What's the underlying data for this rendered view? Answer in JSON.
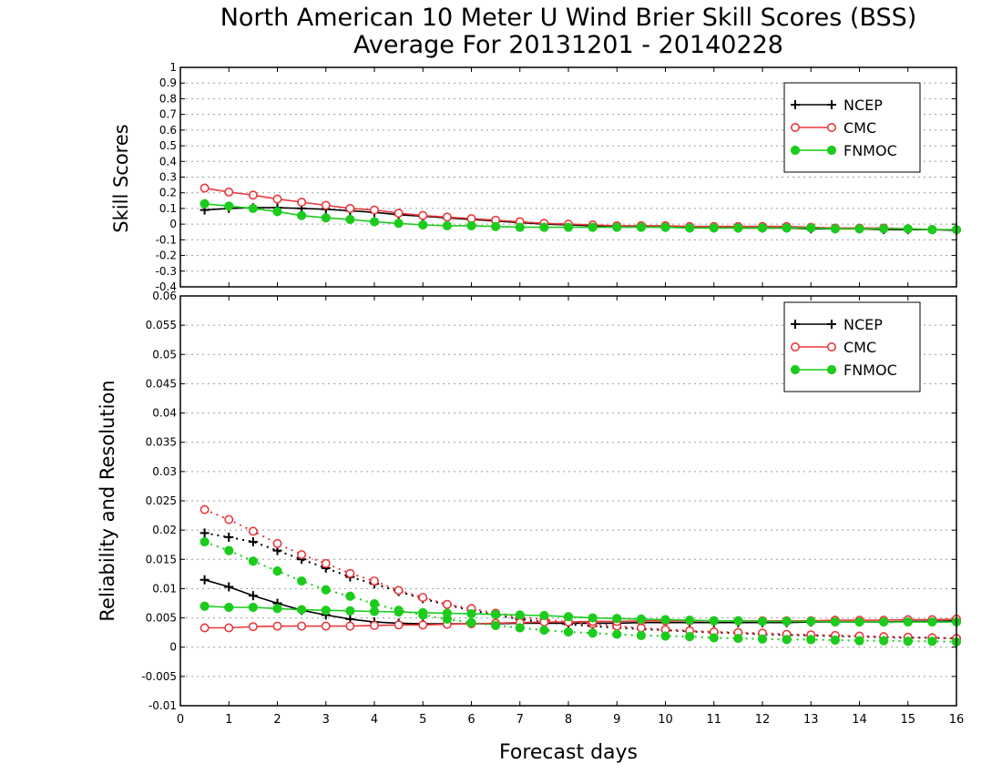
{
  "title_line1": "North American 10 Meter U Wind Brier Skill Scores (BSS)",
  "title_line2": "Average For 20131201 - 20140228",
  "xlabel": "Forecast days",
  "colors": {
    "NCEP": "#000000",
    "CMC": "#e8393c",
    "FNMOC": "#1ccc1c"
  },
  "chart_data": [
    {
      "type": "line",
      "ylabel": "Skill Scores",
      "xlim": [
        0,
        16
      ],
      "ylim": [
        -0.4,
        1
      ],
      "yticks": [
        "1",
        "0.9",
        "0.8",
        "0.7",
        "0.6",
        "0.5",
        "0.4",
        "0.3",
        "0.2",
        "0.1",
        "0",
        "-0.1",
        "-0.2",
        "-0.3",
        "-0.4"
      ],
      "grid": true,
      "legend": "top-right",
      "x": [
        0.5,
        1,
        1.5,
        2,
        2.5,
        3,
        3.5,
        4,
        4.5,
        5,
        5.5,
        6,
        6.5,
        7,
        7.5,
        8,
        8.5,
        9,
        9.5,
        10,
        10.5,
        11,
        11.5,
        12,
        12.5,
        13,
        13.5,
        14,
        14.5,
        15,
        15.5,
        16
      ],
      "series": [
        {
          "name": "NCEP",
          "marker": "plus",
          "linestyle": "solid",
          "values": [
            0.09,
            0.1,
            0.105,
            0.105,
            0.1,
            0.095,
            0.085,
            0.075,
            0.06,
            0.05,
            0.04,
            0.03,
            0.02,
            0.01,
            0.0,
            -0.005,
            -0.01,
            -0.015,
            -0.015,
            -0.02,
            -0.02,
            -0.02,
            -0.025,
            -0.025,
            -0.025,
            -0.03,
            -0.03,
            -0.03,
            -0.035,
            -0.035,
            -0.035,
            -0.04
          ]
        },
        {
          "name": "CMC",
          "marker": "open-circle",
          "linestyle": "solid",
          "values": [
            0.23,
            0.205,
            0.185,
            0.16,
            0.14,
            0.12,
            0.1,
            0.09,
            0.07,
            0.055,
            0.045,
            0.035,
            0.025,
            0.015,
            0.005,
            0.0,
            -0.005,
            -0.01,
            -0.01,
            -0.01,
            -0.015,
            -0.015,
            -0.015,
            -0.015,
            -0.015,
            -0.02,
            -0.025,
            -0.025,
            -0.025,
            -0.03,
            -0.035,
            -0.035
          ]
        },
        {
          "name": "FNMOC",
          "marker": "filled-circle",
          "linestyle": "solid",
          "values": [
            0.13,
            0.115,
            0.1,
            0.08,
            0.055,
            0.04,
            0.03,
            0.015,
            0.005,
            -0.005,
            -0.01,
            -0.01,
            -0.015,
            -0.02,
            -0.02,
            -0.02,
            -0.02,
            -0.02,
            -0.02,
            -0.02,
            -0.025,
            -0.025,
            -0.025,
            -0.025,
            -0.025,
            -0.025,
            -0.03,
            -0.03,
            -0.03,
            -0.03,
            -0.035,
            -0.035
          ]
        }
      ]
    },
    {
      "type": "line",
      "ylabel": "Reliability and Resolution",
      "xlim": [
        0,
        16
      ],
      "ylim": [
        -0.01,
        0.06
      ],
      "yticks": [
        "0.06",
        "0.055",
        "0.05",
        "0.045",
        "0.04",
        "0.035",
        "0.03",
        "0.025",
        "0.02",
        "0.015",
        "0.01",
        "0.005",
        "0",
        "-0.005",
        "-0.01"
      ],
      "xticks": [
        "0",
        "1",
        "2",
        "3",
        "4",
        "5",
        "6",
        "7",
        "8",
        "9",
        "10",
        "11",
        "12",
        "13",
        "14",
        "15",
        "16"
      ],
      "grid": true,
      "legend": "top-right",
      "legend_entries": [
        "NCEP",
        "CMC",
        "FNMOC"
      ],
      "x": [
        0.5,
        1,
        1.5,
        2,
        2.5,
        3,
        3.5,
        4,
        4.5,
        5,
        5.5,
        6,
        6.5,
        7,
        7.5,
        8,
        8.5,
        9,
        9.5,
        10,
        10.5,
        11,
        11.5,
        12,
        12.5,
        13,
        13.5,
        14,
        14.5,
        15,
        15.5,
        16
      ],
      "series": [
        {
          "name": "NCEP",
          "marker": "plus",
          "linestyle": "dotted",
          "values": [
            0.0195,
            0.0188,
            0.018,
            0.0165,
            0.015,
            0.0135,
            0.012,
            0.0108,
            0.0095,
            0.0083,
            0.0072,
            0.0063,
            0.0055,
            0.0048,
            0.0043,
            0.0039,
            0.0036,
            0.0033,
            0.0031,
            0.0029,
            0.0027,
            0.0025,
            0.0024,
            0.0022,
            0.0021,
            0.002,
            0.0019,
            0.0018,
            0.0017,
            0.0016,
            0.0016,
            0.0015
          ]
        },
        {
          "marker": "plus",
          "linestyle": "solid",
          "color_key": "NCEP",
          "values": [
            0.0115,
            0.0103,
            0.0088,
            0.0075,
            0.0063,
            0.0055,
            0.0048,
            0.0043,
            0.0041,
            0.004,
            0.004,
            0.004,
            0.004,
            0.0041,
            0.0041,
            0.0041,
            0.0041,
            0.0041,
            0.0042,
            0.0042,
            0.0042,
            0.0042,
            0.0042,
            0.0042,
            0.0042,
            0.0043,
            0.0043,
            0.0043,
            0.0043,
            0.0044,
            0.0044,
            0.0045
          ]
        },
        {
          "name": "CMC",
          "marker": "open-circle",
          "linestyle": "dotted",
          "values": [
            0.0235,
            0.0218,
            0.0198,
            0.0177,
            0.0158,
            0.0143,
            0.0126,
            0.0113,
            0.0097,
            0.0085,
            0.0073,
            0.0066,
            0.0058,
            0.0052,
            0.0047,
            0.0043,
            0.004,
            0.0036,
            0.0033,
            0.003,
            0.0028,
            0.0026,
            0.0025,
            0.0024,
            0.0022,
            0.0021,
            0.002,
            0.0019,
            0.0018,
            0.0017,
            0.0016,
            0.0015
          ]
        },
        {
          "marker": "open-circle",
          "linestyle": "solid",
          "color_key": "CMC",
          "values": [
            0.0033,
            0.0033,
            0.0035,
            0.0036,
            0.0036,
            0.0036,
            0.0036,
            0.0037,
            0.0038,
            0.0038,
            0.0039,
            0.004,
            0.0041,
            0.0042,
            0.0043,
            0.0043,
            0.0044,
            0.0044,
            0.0045,
            0.0045,
            0.0045,
            0.0045,
            0.0045,
            0.0045,
            0.0045,
            0.0045,
            0.0046,
            0.0046,
            0.0046,
            0.0047,
            0.0047,
            0.0048
          ]
        },
        {
          "name": "FNMOC",
          "marker": "filled-circle",
          "linestyle": "dotted",
          "values": [
            0.018,
            0.0165,
            0.0147,
            0.013,
            0.0113,
            0.0098,
            0.0087,
            0.0074,
            0.0063,
            0.0055,
            0.0048,
            0.0042,
            0.0037,
            0.0033,
            0.0029,
            0.0026,
            0.0024,
            0.0022,
            0.002,
            0.0019,
            0.0018,
            0.0016,
            0.0015,
            0.0014,
            0.0013,
            0.0013,
            0.0012,
            0.0011,
            0.0011,
            0.001,
            0.001,
            0.0009
          ]
        },
        {
          "marker": "filled-circle",
          "linestyle": "solid",
          "color_key": "FNMOC",
          "values": [
            0.007,
            0.0068,
            0.0068,
            0.0066,
            0.0064,
            0.0063,
            0.0062,
            0.0061,
            0.006,
            0.0059,
            0.0058,
            0.0057,
            0.0056,
            0.0055,
            0.0054,
            0.0052,
            0.005,
            0.0049,
            0.0048,
            0.0047,
            0.0046,
            0.0045,
            0.0045,
            0.0044,
            0.0044,
            0.0044,
            0.0043,
            0.0043,
            0.0043,
            0.0043,
            0.0043,
            0.0043
          ]
        }
      ]
    }
  ]
}
